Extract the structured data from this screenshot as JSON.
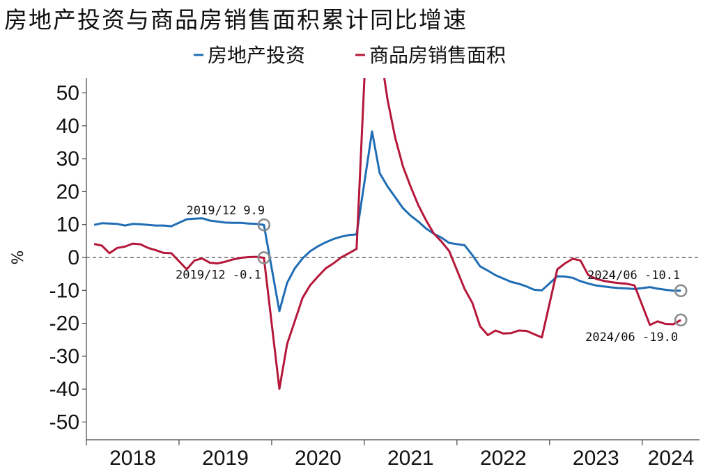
{
  "chart_data": {
    "type": "line",
    "title": "房地产投资与商品房销售面积累计同比增速",
    "xlabel": "",
    "ylabel": "%",
    "ylim": [
      -55,
      55
    ],
    "yticks": [
      50,
      40,
      30,
      20,
      10,
      0,
      -10,
      -20,
      -30,
      -40,
      -50
    ],
    "year_labels": [
      "2018",
      "2019",
      "2020",
      "2021",
      "2022",
      "2023",
      "2024"
    ],
    "zero_line": "dashed",
    "legend_position": "top-center",
    "series": [
      {
        "name": "房地产投资",
        "color": "#1f6db5",
        "points": [
          [
            "2018-02",
            9.9
          ],
          [
            "2018-03",
            10.4
          ],
          [
            "2018-04",
            10.3
          ],
          [
            "2018-05",
            10.2
          ],
          [
            "2018-06",
            9.7
          ],
          [
            "2018-07",
            10.2
          ],
          [
            "2018-08",
            10.1
          ],
          [
            "2018-09",
            9.9
          ],
          [
            "2018-10",
            9.7
          ],
          [
            "2018-11",
            9.7
          ],
          [
            "2018-12",
            9.5
          ],
          [
            "2019-02",
            11.6
          ],
          [
            "2019-03",
            11.8
          ],
          [
            "2019-04",
            11.9
          ],
          [
            "2019-05",
            11.2
          ],
          [
            "2019-06",
            10.9
          ],
          [
            "2019-07",
            10.6
          ],
          [
            "2019-08",
            10.5
          ],
          [
            "2019-09",
            10.5
          ],
          [
            "2019-10",
            10.3
          ],
          [
            "2019-11",
            10.2
          ],
          [
            "2019-12",
            9.9
          ],
          [
            "2020-02",
            -16.3
          ],
          [
            "2020-03",
            -7.7
          ],
          [
            "2020-04",
            -3.3
          ],
          [
            "2020-05",
            -0.3
          ],
          [
            "2020-06",
            1.9
          ],
          [
            "2020-07",
            3.4
          ],
          [
            "2020-08",
            4.6
          ],
          [
            "2020-09",
            5.6
          ],
          [
            "2020-10",
            6.3
          ],
          [
            "2020-11",
            6.8
          ],
          [
            "2020-12",
            7.0
          ],
          [
            "2021-02",
            38.3
          ],
          [
            "2021-03",
            25.6
          ],
          [
            "2021-04",
            21.6
          ],
          [
            "2021-05",
            18.3
          ],
          [
            "2021-06",
            15.0
          ],
          [
            "2021-07",
            12.7
          ],
          [
            "2021-08",
            10.9
          ],
          [
            "2021-09",
            8.8
          ],
          [
            "2021-10",
            7.2
          ],
          [
            "2021-11",
            6.0
          ],
          [
            "2021-12",
            4.4
          ],
          [
            "2022-02",
            3.7
          ],
          [
            "2022-03",
            0.7
          ],
          [
            "2022-04",
            -2.7
          ],
          [
            "2022-05",
            -4.0
          ],
          [
            "2022-06",
            -5.4
          ],
          [
            "2022-07",
            -6.4
          ],
          [
            "2022-08",
            -7.4
          ],
          [
            "2022-09",
            -8.0
          ],
          [
            "2022-10",
            -8.8
          ],
          [
            "2022-11",
            -9.8
          ],
          [
            "2022-12",
            -10.0
          ],
          [
            "2023-02",
            -5.7
          ],
          [
            "2023-03",
            -5.8
          ],
          [
            "2023-04",
            -6.2
          ],
          [
            "2023-05",
            -7.2
          ],
          [
            "2023-06",
            -7.9
          ],
          [
            "2023-07",
            -8.5
          ],
          [
            "2023-08",
            -8.8
          ],
          [
            "2023-09",
            -9.1
          ],
          [
            "2023-10",
            -9.3
          ],
          [
            "2023-11",
            -9.4
          ],
          [
            "2023-12",
            -9.6
          ],
          [
            "2024-02",
            -9.0
          ],
          [
            "2024-03",
            -9.5
          ],
          [
            "2024-04",
            -9.8
          ],
          [
            "2024-05",
            -10.1
          ],
          [
            "2024-06",
            -10.1
          ]
        ]
      },
      {
        "name": "商品房销售面积",
        "color": "#b5173a",
        "points": [
          [
            "2018-02",
            4.1
          ],
          [
            "2018-03",
            3.6
          ],
          [
            "2018-04",
            1.3
          ],
          [
            "2018-05",
            2.9
          ],
          [
            "2018-06",
            3.3
          ],
          [
            "2018-07",
            4.2
          ],
          [
            "2018-08",
            4.0
          ],
          [
            "2018-09",
            2.9
          ],
          [
            "2018-10",
            2.2
          ],
          [
            "2018-11",
            1.4
          ],
          [
            "2018-12",
            1.3
          ],
          [
            "2019-02",
            -3.6
          ],
          [
            "2019-03",
            -0.9
          ],
          [
            "2019-04",
            -0.3
          ],
          [
            "2019-05",
            -1.6
          ],
          [
            "2019-06",
            -1.8
          ],
          [
            "2019-07",
            -1.3
          ],
          [
            "2019-08",
            -0.6
          ],
          [
            "2019-09",
            -0.1
          ],
          [
            "2019-10",
            0.1
          ],
          [
            "2019-11",
            0.2
          ],
          [
            "2019-12",
            -0.1
          ],
          [
            "2020-02",
            -39.9
          ],
          [
            "2020-03",
            -26.3
          ],
          [
            "2020-04",
            -19.3
          ],
          [
            "2020-05",
            -12.3
          ],
          [
            "2020-06",
            -8.4
          ],
          [
            "2020-07",
            -5.8
          ],
          [
            "2020-08",
            -3.3
          ],
          [
            "2020-09",
            -1.8
          ],
          [
            "2020-10",
            0.0
          ],
          [
            "2020-11",
            1.3
          ],
          [
            "2020-12",
            2.6
          ],
          [
            "2021-02",
            104.9
          ],
          [
            "2021-03",
            63.8
          ],
          [
            "2021-04",
            48.1
          ],
          [
            "2021-05",
            36.4
          ],
          [
            "2021-06",
            27.7
          ],
          [
            "2021-07",
            21.5
          ],
          [
            "2021-08",
            15.9
          ],
          [
            "2021-09",
            11.3
          ],
          [
            "2021-10",
            7.3
          ],
          [
            "2021-11",
            4.8
          ],
          [
            "2021-12",
            1.9
          ],
          [
            "2022-02",
            -9.6
          ],
          [
            "2022-03",
            -13.8
          ],
          [
            "2022-04",
            -20.9
          ],
          [
            "2022-05",
            -23.6
          ],
          [
            "2022-06",
            -22.2
          ],
          [
            "2022-07",
            -23.1
          ],
          [
            "2022-08",
            -23.0
          ],
          [
            "2022-09",
            -22.2
          ],
          [
            "2022-10",
            -22.3
          ],
          [
            "2022-11",
            -23.3
          ],
          [
            "2022-12",
            -24.3
          ],
          [
            "2023-02",
            -3.6
          ],
          [
            "2023-03",
            -1.8
          ],
          [
            "2023-04",
            -0.4
          ],
          [
            "2023-05",
            -0.9
          ],
          [
            "2023-06",
            -5.3
          ],
          [
            "2023-07",
            -6.5
          ],
          [
            "2023-08",
            -7.1
          ],
          [
            "2023-09",
            -7.5
          ],
          [
            "2023-10",
            -7.8
          ],
          [
            "2023-11",
            -8.0
          ],
          [
            "2023-12",
            -8.5
          ],
          [
            "2024-02",
            -20.5
          ],
          [
            "2024-03",
            -19.4
          ],
          [
            "2024-04",
            -20.2
          ],
          [
            "2024-05",
            -20.3
          ],
          [
            "2024-06",
            -19.0
          ]
        ]
      }
    ],
    "annotations": [
      {
        "text": "2019/12  9.9",
        "series": 0,
        "x": "2019-12",
        "y": 9.9,
        "side": "above"
      },
      {
        "text": "2019/12  -0.1",
        "series": 1,
        "x": "2019-12",
        "y": -0.1,
        "side": "below-left"
      },
      {
        "text": "2024/06  -10.1",
        "series": 0,
        "x": "2024-06",
        "y": -10.1,
        "side": "above-left"
      },
      {
        "text": "2024/06  -19.0",
        "series": 1,
        "x": "2024-06",
        "y": -19.0,
        "side": "below-left"
      }
    ]
  }
}
